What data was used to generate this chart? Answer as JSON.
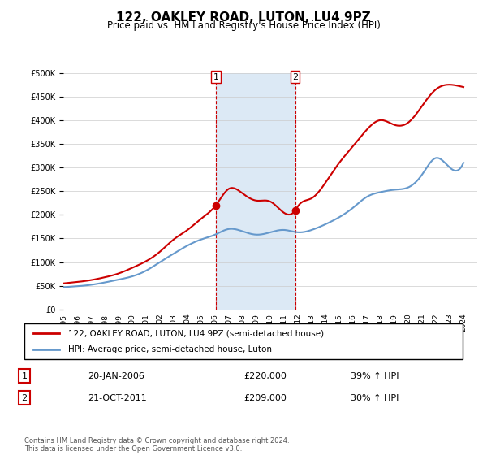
{
  "title": "122, OAKLEY ROAD, LUTON, LU4 9PZ",
  "subtitle": "Price paid vs. HM Land Registry's House Price Index (HPI)",
  "legend_line1": "122, OAKLEY ROAD, LUTON, LU4 9PZ (semi-detached house)",
  "legend_line2": "HPI: Average price, semi-detached house, Luton",
  "footer": "Contains HM Land Registry data © Crown copyright and database right 2024.\nThis data is licensed under the Open Government Licence v3.0.",
  "annotation1": {
    "num": "1",
    "date": "20-JAN-2006",
    "price": "£220,000",
    "hpi": "39% ↑ HPI"
  },
  "annotation2": {
    "num": "2",
    "date": "21-OCT-2011",
    "price": "£209,000",
    "hpi": "30% ↑ HPI"
  },
  "sale1_year": 2006.05,
  "sale1_price": 220000,
  "sale2_year": 2011.8,
  "sale2_price": 209000,
  "hpi_color": "#6699cc",
  "price_color": "#cc0000",
  "bg_color": "#dce9f5",
  "plot_bg": "#ffffff",
  "ylim": [
    0,
    500000
  ],
  "yticks": [
    0,
    50000,
    100000,
    150000,
    200000,
    250000,
    300000,
    350000,
    400000,
    450000,
    500000
  ],
  "xmin": 1995,
  "xmax": 2025
}
